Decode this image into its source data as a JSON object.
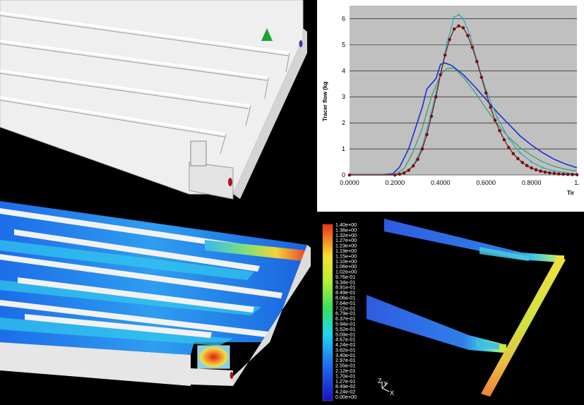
{
  "chart_data": {
    "type": "line",
    "title": "",
    "xlabel": "Tir",
    "ylabel": "Tracer flow (kg",
    "xlim": [
      0,
      1.0
    ],
    "ylim": [
      0,
      6.5
    ],
    "x_ticks": [
      "0.0000",
      "0.2000",
      "0.4000",
      "0.6000",
      "0.8000",
      "1."
    ],
    "x_tick_values": [
      0,
      0.2,
      0.4,
      0.6,
      0.8,
      1.0
    ],
    "y_ticks": [
      "0",
      "1",
      "2",
      "3",
      "4",
      "5",
      "6"
    ],
    "y_tick_values": [
      0,
      1,
      2,
      3,
      4,
      5,
      6
    ],
    "grid": "horizontal",
    "series": [
      {
        "color": "#1a2fd6",
        "marker": "none",
        "points": [
          [
            0,
            0.02
          ],
          [
            0.15,
            0.02
          ],
          [
            0.19,
            0.05
          ],
          [
            0.22,
            0.3
          ],
          [
            0.26,
            1.0
          ],
          [
            0.29,
            1.8
          ],
          [
            0.32,
            2.6
          ],
          [
            0.34,
            3.3
          ],
          [
            0.36,
            3.5
          ],
          [
            0.38,
            3.7
          ],
          [
            0.4,
            4.25
          ],
          [
            0.42,
            4.3
          ],
          [
            0.45,
            4.2
          ],
          [
            0.5,
            3.85
          ],
          [
            0.55,
            3.4
          ],
          [
            0.6,
            2.9
          ],
          [
            0.65,
            2.4
          ],
          [
            0.7,
            1.95
          ],
          [
            0.75,
            1.5
          ],
          [
            0.8,
            1.15
          ],
          [
            0.85,
            0.85
          ],
          [
            0.9,
            0.6
          ],
          [
            0.95,
            0.42
          ],
          [
            1.0,
            0.28
          ]
        ]
      },
      {
        "color": "#2e9e6a",
        "marker": "none",
        "points": [
          [
            0,
            0.02
          ],
          [
            0.2,
            0.02
          ],
          [
            0.24,
            0.25
          ],
          [
            0.28,
            0.9
          ],
          [
            0.32,
            1.8
          ],
          [
            0.36,
            3.0
          ],
          [
            0.4,
            3.85
          ],
          [
            0.43,
            4.1
          ],
          [
            0.46,
            4.1
          ],
          [
            0.5,
            3.75
          ],
          [
            0.55,
            3.2
          ],
          [
            0.6,
            2.55
          ],
          [
            0.65,
            1.95
          ],
          [
            0.7,
            1.45
          ],
          [
            0.75,
            1.05
          ],
          [
            0.8,
            0.75
          ],
          [
            0.85,
            0.5
          ],
          [
            0.9,
            0.33
          ],
          [
            0.95,
            0.22
          ],
          [
            1.0,
            0.15
          ]
        ]
      },
      {
        "color": "#2aa7b8",
        "marker": "plus",
        "points": [
          [
            0,
            0.0
          ],
          [
            0.2,
            0.0
          ],
          [
            0.24,
            0.08
          ],
          [
            0.28,
            0.35
          ],
          [
            0.32,
            1.1
          ],
          [
            0.36,
            2.4
          ],
          [
            0.4,
            3.9
          ],
          [
            0.43,
            5.1
          ],
          [
            0.46,
            6.05
          ],
          [
            0.48,
            6.15
          ],
          [
            0.5,
            6.0
          ],
          [
            0.53,
            5.35
          ],
          [
            0.56,
            4.4
          ],
          [
            0.6,
            3.25
          ],
          [
            0.65,
            2.2
          ],
          [
            0.7,
            1.4
          ],
          [
            0.75,
            0.85
          ],
          [
            0.8,
            0.5
          ],
          [
            0.85,
            0.28
          ],
          [
            0.9,
            0.15
          ],
          [
            0.95,
            0.08
          ],
          [
            1.0,
            0.04
          ]
        ]
      },
      {
        "color": "#7a1010",
        "marker": "dot",
        "points": [
          [
            0,
            0.0
          ],
          [
            0.2,
            0.0
          ],
          [
            0.22,
            0.03
          ],
          [
            0.24,
            0.08
          ],
          [
            0.26,
            0.18
          ],
          [
            0.28,
            0.35
          ],
          [
            0.3,
            0.6
          ],
          [
            0.32,
            1.0
          ],
          [
            0.34,
            1.55
          ],
          [
            0.36,
            2.25
          ],
          [
            0.38,
            3.0
          ],
          [
            0.4,
            3.85
          ],
          [
            0.42,
            4.6
          ],
          [
            0.44,
            5.2
          ],
          [
            0.46,
            5.6
          ],
          [
            0.48,
            5.72
          ],
          [
            0.5,
            5.65
          ],
          [
            0.52,
            5.35
          ],
          [
            0.54,
            4.9
          ],
          [
            0.56,
            4.35
          ],
          [
            0.58,
            3.75
          ],
          [
            0.6,
            3.15
          ],
          [
            0.62,
            2.6
          ],
          [
            0.64,
            2.1
          ],
          [
            0.66,
            1.7
          ],
          [
            0.68,
            1.35
          ],
          [
            0.7,
            1.05
          ],
          [
            0.72,
            0.82
          ],
          [
            0.74,
            0.63
          ],
          [
            0.76,
            0.48
          ],
          [
            0.78,
            0.36
          ],
          [
            0.8,
            0.27
          ],
          [
            0.82,
            0.2
          ],
          [
            0.84,
            0.15
          ],
          [
            0.86,
            0.11
          ],
          [
            0.88,
            0.08
          ],
          [
            0.9,
            0.06
          ],
          [
            0.92,
            0.04
          ],
          [
            0.94,
            0.03
          ],
          [
            0.96,
            0.02
          ],
          [
            0.98,
            0.015
          ],
          [
            1.0,
            0.01
          ]
        ]
      }
    ]
  },
  "colorbar": {
    "labels": [
      "1.40e+00",
      "1.36e+00",
      "1.32e+00",
      "1.27e+00",
      "1.23e+00",
      "1.19e+00",
      "1.15e+00",
      "1.10e+00",
      "1.06e+00",
      "1.02e+00",
      "9.76e-01",
      "9.34e-01",
      "8.91e-01",
      "8.49e-01",
      "8.06e-01",
      "7.64e-01",
      "7.22e-01",
      "6.79e-01",
      "6.37e-01",
      "5.94e-01",
      "5.52e-01",
      "5.09e-01",
      "4.67e-01",
      "4.24e-01",
      "3.82e-01",
      "3.40e-01",
      "2.97e-01",
      "2.55e-01",
      "2.12e-01",
      "1.70e-01",
      "1.27e-01",
      "8.49e-02",
      "4.24e-02",
      "0.00e+00"
    ]
  },
  "axes_triad": {
    "z": "Z",
    "y": "Y",
    "x": "X"
  },
  "colors": {
    "geometry_white": "#eeeeee",
    "marker_green": "#19a335",
    "marker_red": "#b01020",
    "chart_bg": "#c0c0c0"
  }
}
